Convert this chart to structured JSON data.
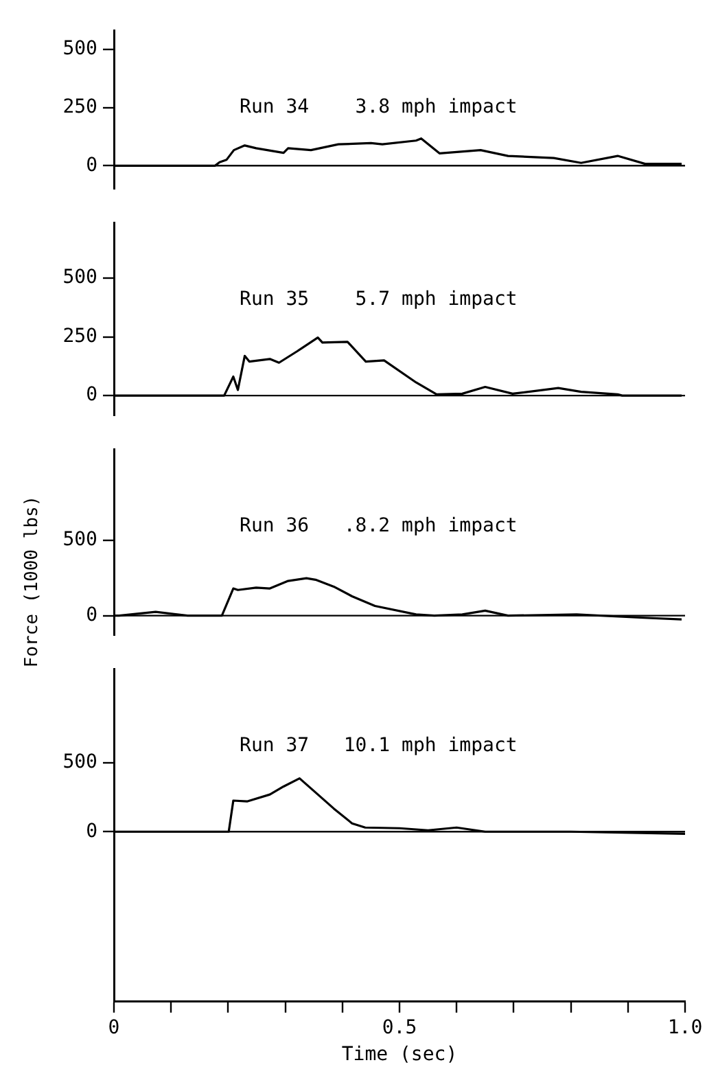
{
  "chart_data": [
    {
      "type": "line",
      "title": "Run 34    3.8 mph impact",
      "x": [
        0,
        0.01,
        0.177,
        0.185,
        0.197,
        0.21,
        0.229,
        0.249,
        0.297,
        0.305,
        0.345,
        0.393,
        0.45,
        0.47,
        0.529,
        0.538,
        0.57,
        0.642,
        0.69,
        0.77,
        0.818,
        0.882,
        0.93,
        0.994
      ],
      "series": [
        {
          "color": "#000000",
          "values": [
            0,
            0,
            0,
            15,
            25,
            67,
            87,
            75,
            55,
            75,
            67,
            92,
            97,
            92,
            108,
            117,
            53,
            67,
            42,
            33,
            12,
            42,
            8,
            8
          ]
        }
      ],
      "xlim": [
        0,
        1
      ],
      "ylim": [
        -100,
        580
      ],
      "yticks": [
        0,
        250,
        500
      ],
      "ref_lines": [
        {
          "axis": "y",
          "value": 0
        }
      ],
      "tick_labels": "y",
      "grid": false,
      "legend": false,
      "marker": "none"
    },
    {
      "type": "line",
      "title": "Run 35    5.7 mph impact",
      "x": [
        0,
        0.009,
        0.193,
        0.209,
        0.217,
        0.229,
        0.237,
        0.273,
        0.289,
        0.321,
        0.357,
        0.365,
        0.409,
        0.441,
        0.473,
        0.529,
        0.565,
        0.61,
        0.65,
        0.698,
        0.778,
        0.818,
        0.882,
        0.89,
        0.994
      ],
      "series": [
        {
          "color": "#000000",
          "values": [
            0,
            0,
            0,
            81,
            24,
            169,
            145,
            156,
            140,
            189,
            247,
            226,
            229,
            145,
            150,
            56,
            5,
            8,
            37,
            8,
            32,
            16,
            5,
            0,
            0
          ]
        }
      ],
      "xlim": [
        0,
        1
      ],
      "ylim": [
        -85,
        735
      ],
      "yticks": [
        0,
        250,
        500
      ],
      "ref_lines": [
        {
          "axis": "y",
          "value": 0
        }
      ],
      "tick_labels": "y",
      "grid": false,
      "legend": false,
      "marker": "none"
    },
    {
      "type": "line",
      "title": "Run 36   .8.2 mph impact",
      "ylabel": "Force (1000 lbs)",
      "x": [
        0,
        0.009,
        0.073,
        0.129,
        0.189,
        0.209,
        0.217,
        0.249,
        0.273,
        0.305,
        0.337,
        0.353,
        0.385,
        0.417,
        0.457,
        0.529,
        0.561,
        0.61,
        0.65,
        0.69,
        0.81,
        0.922,
        0.994
      ],
      "series": [
        {
          "color": "#000000",
          "values": [
            0,
            0,
            25,
            0,
            0,
            180,
            170,
            185,
            180,
            230,
            248,
            238,
            192,
            128,
            64,
            8,
            0,
            8,
            33,
            0,
            8,
            -13,
            -25
          ]
        }
      ],
      "xlim": [
        0,
        1
      ],
      "ylim": [
        -130,
        1100
      ],
      "yticks": [
        0,
        500
      ],
      "ref_lines": [
        {
          "axis": "y",
          "value": 0
        }
      ],
      "tick_labels": "y",
      "grid": false,
      "legend": false,
      "marker": "none"
    },
    {
      "type": "line",
      "title": "Run 37   10.1 mph impact",
      "xlabel": "Time (sec)",
      "x": [
        0,
        0.1,
        0.201,
        0.209,
        0.233,
        0.273,
        0.297,
        0.325,
        0.353,
        0.385,
        0.417,
        0.44,
        0.5,
        0.55,
        0.6,
        0.65,
        0.8,
        1.0
      ],
      "series": [
        {
          "color": "#000000",
          "values": [
            0,
            0,
            0,
            225,
            219,
            269,
            327,
            386,
            284,
            167,
            60,
            30,
            25,
            10,
            30,
            0,
            0,
            -15
          ]
        }
      ],
      "xlim": [
        0,
        1
      ],
      "xticks": [
        0,
        {
          "value": 0.1,
          "label": null
        },
        {
          "value": 0.2,
          "label": null
        },
        {
          "value": 0.3,
          "label": null
        },
        {
          "value": 0.4,
          "label": null
        },
        0.5,
        {
          "value": 0.6,
          "label": null
        },
        {
          "value": 0.7,
          "label": null
        },
        {
          "value": 0.8,
          "label": null
        },
        {
          "value": 0.9,
          "label": null
        },
        {
          "value": 1,
          "label": "1.0"
        }
      ],
      "ylim": [
        -1230,
        1175
      ],
      "yticks": [
        0,
        500
      ],
      "ref_lines": [
        {
          "axis": "y",
          "value": 0
        }
      ],
      "grid": false,
      "legend": false,
      "marker": "none"
    }
  ]
}
